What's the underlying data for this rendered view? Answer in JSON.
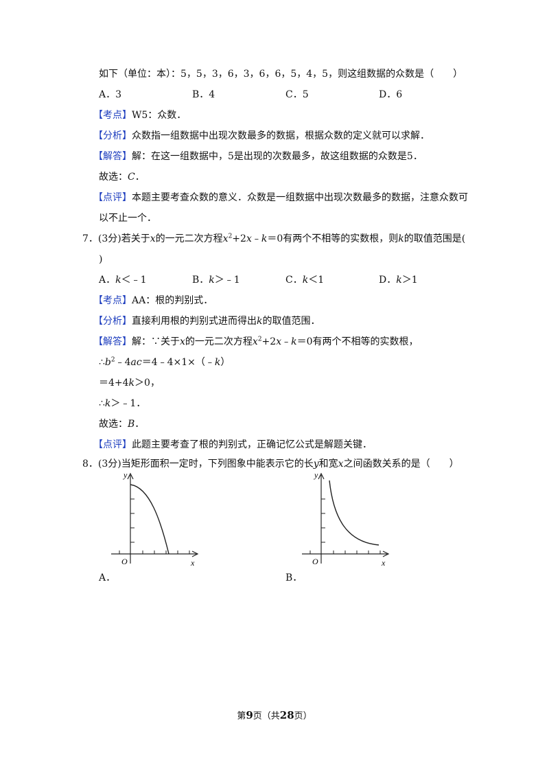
{
  "q6": {
    "stem_cont": "如下（单位：本）：5，5，3，6，3，6，6，5，4，5，则这组数据的众数是（　　）",
    "options": [
      "A．3",
      "B．4",
      "C．5",
      "D．6"
    ],
    "kaodian_tag": "【考点】",
    "kaodian": "W5：众数．",
    "fenxi_tag": "【分析】",
    "fenxi": "众数指一组数据中出现次数最多的数据，根据众数的定义就可以求解．",
    "jieda_tag": "【解答】",
    "jieda": "解：在这一组数据中，5是出现的次数最多，故这组数据的众数是5．",
    "guxuan_pre": "故选：",
    "guxuan_ans": "C",
    "guxuan_end": "．",
    "dianping_tag": "【点评】",
    "dianping_1": "本题主要考查众数的意义．众数是一组数据中出现次数最多的数据，注意众数可",
    "dianping_2": "以不止一个．"
  },
  "q7": {
    "num": "7．(3分)",
    "stem_a": "若关于",
    "var_x": "x",
    "stem_b": "的一元二次方程",
    "eq_x2": "x",
    "eq_sup": "2",
    "eq_rest": "+2",
    "eq_x": "x",
    "eq_minus": "﹣",
    "eq_k": "k",
    "eq_zero": "＝0",
    "stem_c": "有两个不相等的实数根，则",
    "var_k": "k",
    "stem_d": "的取值范围是(",
    "stem_close": ")",
    "options": [
      {
        "letter": "A．",
        "var": "k",
        "rel": "＜﹣1"
      },
      {
        "letter": "B．",
        "var": "k",
        "rel": "＞﹣1"
      },
      {
        "letter": "C．",
        "var": "k",
        "rel": "＜1"
      },
      {
        "letter": "D．",
        "var": "k",
        "rel": "＞1"
      }
    ],
    "kaodian_tag": "【考点】",
    "kaodian": "AA：根的判别式．",
    "fenxi_tag": "【分析】",
    "fenxi_a": "直接利用根的判别式进而得出",
    "fenxi_k": "k",
    "fenxi_b": "的取值范围．",
    "jieda_tag": "【解答】",
    "jieda_a": "解：∵关于",
    "jieda_x": "x",
    "jieda_b": "的一元二次方程",
    "jieda_c": "有两个不相等的实数根，",
    "step1_pre": "∴",
    "step1_b": "b",
    "step1_sup": "2",
    "step1_mid": "﹣4",
    "step1_ac": "ac",
    "step1_rest": "＝4﹣4×1×（﹣",
    "step1_k": "k",
    "step1_end": "）",
    "step2_a": "＝4+4",
    "step2_k": "k",
    "step2_b": "＞0，",
    "step3_a": "∴",
    "step3_k": "k",
    "step3_b": "＞﹣1．",
    "guxuan_pre": "故选：",
    "guxuan_ans": "B",
    "guxuan_end": "．",
    "dianping_tag": "【点评】",
    "dianping": "此题主要考查了根的判别式，正确记忆公式是解题关键．"
  },
  "q8": {
    "num": "8．(3分)",
    "stem_a": "当矩形面积一定时，下列图象中能表示它的长",
    "var_y": "y",
    "stem_b": "和宽",
    "var_x": "x",
    "stem_c": "之间函数关系的是（　　）",
    "graph_a": {
      "y_label": "y",
      "x_label": "x",
      "origin": "O",
      "caption": "A．"
    },
    "graph_b": {
      "y_label": "y",
      "x_label": "x",
      "origin": "O",
      "caption": "B．"
    }
  },
  "footer": {
    "pre": "第",
    "page": "9",
    "mid": "页（共",
    "total": "28",
    "post": "页）"
  }
}
